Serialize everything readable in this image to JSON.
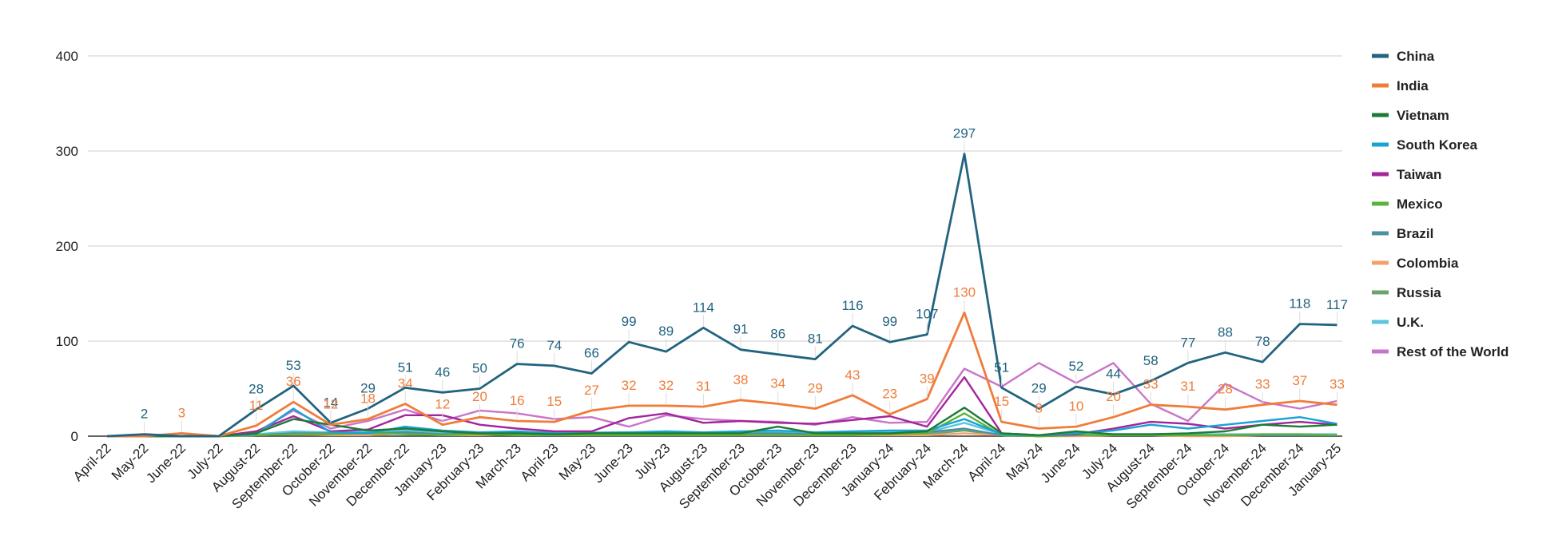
{
  "chart_data": {
    "type": "line",
    "title": "",
    "xlabel": "",
    "ylabel": "",
    "ylim": [
      0,
      400
    ],
    "yticks": [
      0,
      100,
      200,
      300,
      400
    ],
    "grid": true,
    "legend_position": "right",
    "categories": [
      "April-22",
      "May-22",
      "June-22",
      "July-22",
      "August-22",
      "September-22",
      "October-22",
      "November-22",
      "December-22",
      "January-23",
      "February-23",
      "March-23",
      "April-23",
      "May-23",
      "June-23",
      "July-23",
      "August-23",
      "September-23",
      "October-23",
      "November-23",
      "December-23",
      "January-24",
      "February-24",
      "March-24",
      "April-24",
      "May-24",
      "June-24",
      "July-24",
      "August-24",
      "September-24",
      "October-24",
      "November-24",
      "December-24",
      "January-25"
    ],
    "series": [
      {
        "name": "China",
        "color": "#22637f",
        "values": [
          0,
          2,
          0,
          0,
          28,
          53,
          14,
          29,
          51,
          46,
          50,
          76,
          74,
          66,
          99,
          89,
          114,
          91,
          86,
          81,
          116,
          99,
          107,
          297,
          51,
          29,
          52,
          44,
          58,
          77,
          88,
          78,
          118,
          117
        ],
        "labels": [
          null,
          "2",
          null,
          null,
          "28",
          "53",
          "14",
          "29",
          "51",
          "46",
          "50",
          "76",
          "74",
          "66",
          "99",
          "89",
          "114",
          "91",
          "86",
          "81",
          "116",
          "99",
          "107",
          "297",
          "51",
          "29",
          "52",
          "44",
          "58",
          "77",
          "88",
          "78",
          "118",
          "117"
        ]
      },
      {
        "name": "India",
        "color": "#f07c3a",
        "values": [
          0,
          0,
          3,
          0,
          11,
          36,
          12,
          18,
          34,
          12,
          20,
          16,
          15,
          27,
          32,
          32,
          31,
          38,
          34,
          29,
          43,
          23,
          39,
          130,
          15,
          8,
          10,
          20,
          33,
          31,
          28,
          33,
          37,
          33
        ],
        "labels": [
          null,
          null,
          "3",
          null,
          "11",
          "36",
          "12",
          "18",
          "34",
          "12",
          "20",
          "16",
          "15",
          "27",
          "32",
          "32",
          "31",
          "38",
          "34",
          "29",
          "43",
          "23",
          "39",
          "130",
          "15",
          "8",
          "10",
          "20",
          "33",
          "31",
          "28",
          "33",
          "37",
          "33"
        ]
      },
      {
        "name": "Vietnam",
        "color": "#1e7b35",
        "values": [
          0,
          0,
          0,
          0,
          3,
          18,
          12,
          6,
          8,
          5,
          3,
          3,
          2,
          3,
          3,
          3,
          3,
          3,
          10,
          3,
          3,
          3,
          5,
          30,
          3,
          1,
          5,
          2,
          2,
          3,
          5,
          12,
          10,
          12
        ],
        "labels": []
      },
      {
        "name": "South Korea",
        "color": "#17a3d4",
        "values": [
          0,
          0,
          0,
          0,
          2,
          29,
          4,
          3,
          10,
          6,
          4,
          5,
          3,
          3,
          4,
          5,
          4,
          5,
          6,
          4,
          5,
          6,
          6,
          18,
          2,
          1,
          3,
          6,
          12,
          8,
          12,
          16,
          20,
          13
        ],
        "labels": []
      },
      {
        "name": "Taiwan",
        "color": "#a3259c",
        "values": [
          0,
          0,
          0,
          0,
          5,
          21,
          5,
          7,
          22,
          22,
          12,
          8,
          5,
          5,
          19,
          24,
          14,
          16,
          14,
          13,
          17,
          21,
          10,
          62,
          3,
          1,
          2,
          8,
          15,
          13,
          8,
          12,
          15,
          12
        ],
        "labels": []
      },
      {
        "name": "Mexico",
        "color": "#5ab33b",
        "values": [
          0,
          0,
          0,
          0,
          1,
          2,
          2,
          3,
          2,
          1,
          2,
          1,
          1,
          1,
          1,
          1,
          1,
          1,
          1,
          1,
          1,
          2,
          3,
          24,
          1,
          0,
          1,
          1,
          1,
          1,
          1,
          2,
          2,
          1
        ],
        "labels": []
      },
      {
        "name": "Brazil",
        "color": "#4c8f9e",
        "values": [
          0,
          0,
          0,
          0,
          1,
          3,
          3,
          3,
          4,
          2,
          3,
          4,
          3,
          3,
          3,
          2,
          3,
          3,
          3,
          2,
          3,
          3,
          4,
          8,
          1,
          0,
          1,
          1,
          1,
          1,
          1,
          1,
          1,
          1
        ],
        "labels": []
      },
      {
        "name": "Colombia",
        "color": "#f4a06a",
        "values": [
          0,
          0,
          0,
          0,
          1,
          2,
          1,
          1,
          3,
          1,
          1,
          2,
          1,
          1,
          1,
          1,
          1,
          1,
          1,
          1,
          1,
          1,
          1,
          3,
          1,
          0,
          0,
          1,
          1,
          0,
          0,
          1,
          1,
          1
        ],
        "labels": []
      },
      {
        "name": "Russia",
        "color": "#6aa56e",
        "values": [
          0,
          0,
          0,
          0,
          1,
          3,
          2,
          3,
          4,
          2,
          2,
          2,
          2,
          2,
          2,
          2,
          2,
          2,
          2,
          2,
          2,
          2,
          2,
          6,
          1,
          0,
          1,
          1,
          1,
          1,
          1,
          1,
          1,
          1
        ],
        "labels": []
      },
      {
        "name": "U.K.",
        "color": "#5ec4e0",
        "values": [
          0,
          0,
          0,
          0,
          2,
          5,
          4,
          5,
          6,
          4,
          4,
          4,
          4,
          4,
          4,
          4,
          4,
          4,
          4,
          4,
          4,
          4,
          4,
          14,
          2,
          1,
          2,
          2,
          2,
          2,
          2,
          2,
          2,
          2
        ],
        "labels": []
      },
      {
        "name": "Rest of the World",
        "color": "#c875c8",
        "values": [
          0,
          0,
          0,
          0,
          4,
          27,
          8,
          16,
          28,
          16,
          27,
          24,
          18,
          20,
          10,
          22,
          18,
          16,
          15,
          12,
          20,
          14,
          15,
          71,
          52,
          77,
          56,
          77,
          34,
          16,
          55,
          36,
          29,
          37
        ],
        "labels": []
      }
    ]
  }
}
